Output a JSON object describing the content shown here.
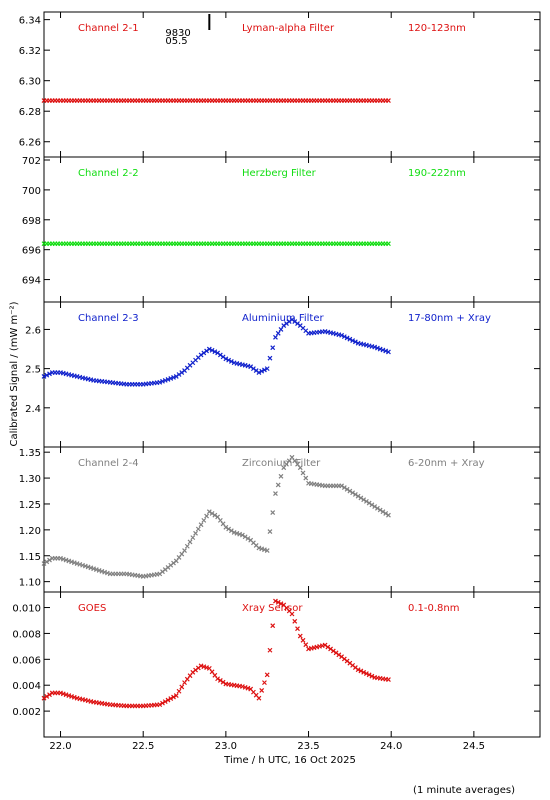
{
  "figure": {
    "ylabel": "Calibrated Signal / (mW m⁻²)",
    "xlabel": "Time / h UTC, 16 Oct 2025",
    "footnote": "(1 minute averages)",
    "marker_label_top": "9830",
    "marker_label_bottom": "05.5",
    "marker_x": 22.9
  },
  "chart_data": [
    {
      "type": "scatter",
      "panel_name": "channel-2-1",
      "channel_label": "Channel 2-1",
      "filter_label": "Lyman-alpha Filter",
      "band_label": "120-123nm",
      "color": "#dd1111",
      "xlim": [
        21.9,
        24.9
      ],
      "ylim": [
        6.25,
        6.345
      ],
      "yticks": [
        6.26,
        6.28,
        6.3,
        6.32,
        6.34
      ],
      "ytick_decimals": 2,
      "xticks": [
        22.0,
        22.5,
        23.0,
        23.5,
        24.0,
        24.5
      ],
      "x": [
        21.9,
        22.2,
        22.5,
        22.8,
        23.1,
        23.4,
        23.7,
        24.0
      ],
      "y": [
        6.287,
        6.287,
        6.287,
        6.287,
        6.287,
        6.287,
        6.287,
        6.287
      ]
    },
    {
      "type": "scatter",
      "panel_name": "channel-2-2",
      "channel_label": "Channel 2-2",
      "filter_label": "Herzberg Filter",
      "band_label": "190-222nm",
      "color": "#11dd11",
      "xlim": [
        21.9,
        24.9
      ],
      "ylim": [
        692.5,
        702.2
      ],
      "yticks": [
        694,
        696,
        698,
        700,
        702
      ],
      "ytick_decimals": 0,
      "xticks": [
        22.0,
        22.5,
        23.0,
        23.5,
        24.0,
        24.5
      ],
      "x": [
        21.9,
        22.2,
        22.5,
        22.8,
        23.1,
        23.4,
        23.7,
        24.0
      ],
      "y": [
        696.4,
        696.4,
        696.4,
        696.4,
        696.4,
        696.4,
        696.4,
        696.4
      ]
    },
    {
      "type": "scatter",
      "panel_name": "channel-2-3",
      "channel_label": "Channel 2-3",
      "filter_label": "Aluminium Filter",
      "band_label": "17-80nm + Xray",
      "color": "#1122cc",
      "xlim": [
        21.9,
        24.9
      ],
      "ylim": [
        2.3,
        2.67
      ],
      "yticks": [
        2.4,
        2.5,
        2.6
      ],
      "ytick_decimals": 1,
      "xticks": [
        22.0,
        22.5,
        23.0,
        23.5,
        24.0,
        24.5
      ],
      "x": [
        21.9,
        21.95,
        22.0,
        22.1,
        22.2,
        22.3,
        22.4,
        22.5,
        22.6,
        22.7,
        22.75,
        22.8,
        22.85,
        22.9,
        22.95,
        23.0,
        23.05,
        23.1,
        23.15,
        23.2,
        23.25,
        23.3,
        23.35,
        23.4,
        23.45,
        23.5,
        23.6,
        23.7,
        23.8,
        23.9,
        24.0
      ],
      "y": [
        2.48,
        2.49,
        2.49,
        2.48,
        2.47,
        2.465,
        2.46,
        2.46,
        2.465,
        2.48,
        2.495,
        2.515,
        2.535,
        2.55,
        2.54,
        2.525,
        2.515,
        2.51,
        2.505,
        2.49,
        2.5,
        2.58,
        2.61,
        2.625,
        2.61,
        2.59,
        2.595,
        2.585,
        2.565,
        2.555,
        2.54
      ]
    },
    {
      "type": "scatter",
      "panel_name": "channel-2-4",
      "channel_label": "Channel 2-4",
      "filter_label": "Zirconium Filter",
      "band_label": "6-20nm + Xray",
      "color": "#808080",
      "xlim": [
        21.9,
        24.9
      ],
      "ylim": [
        1.08,
        1.36
      ],
      "yticks": [
        1.1,
        1.15,
        1.2,
        1.25,
        1.3,
        1.35
      ],
      "ytick_decimals": 2,
      "xticks": [
        22.0,
        22.5,
        23.0,
        23.5,
        24.0,
        24.5
      ],
      "x": [
        21.9,
        21.95,
        22.0,
        22.1,
        22.2,
        22.3,
        22.4,
        22.5,
        22.6,
        22.7,
        22.75,
        22.8,
        22.85,
        22.9,
        22.95,
        23.0,
        23.05,
        23.1,
        23.15,
        23.2,
        23.25,
        23.3,
        23.35,
        23.4,
        23.45,
        23.5,
        23.6,
        23.7,
        23.8,
        23.9,
        24.0
      ],
      "y": [
        1.135,
        1.145,
        1.145,
        1.135,
        1.125,
        1.115,
        1.115,
        1.11,
        1.115,
        1.14,
        1.16,
        1.185,
        1.21,
        1.235,
        1.225,
        1.205,
        1.195,
        1.19,
        1.18,
        1.165,
        1.16,
        1.27,
        1.32,
        1.34,
        1.32,
        1.29,
        1.285,
        1.285,
        1.265,
        1.245,
        1.225
      ]
    },
    {
      "type": "scatter",
      "panel_name": "goes",
      "channel_label": "GOES",
      "filter_label": "Xray Sensor",
      "band_label": "0.1-0.8nm",
      "color": "#dd1111",
      "xlim": [
        21.9,
        24.9
      ],
      "ylim": [
        0,
        0.0112
      ],
      "yticks": [
        0.002,
        0.004,
        0.006,
        0.008,
        0.01
      ],
      "ytick_decimals": 3,
      "xticks": [
        22.0,
        22.5,
        23.0,
        23.5,
        24.0,
        24.5
      ],
      "x": [
        21.9,
        21.95,
        22.0,
        22.1,
        22.2,
        22.3,
        22.4,
        22.5,
        22.6,
        22.7,
        22.75,
        22.8,
        22.85,
        22.9,
        22.95,
        23.0,
        23.05,
        23.1,
        23.15,
        23.2,
        23.25,
        23.3,
        23.35,
        23.4,
        23.45,
        23.5,
        23.6,
        23.7,
        23.8,
        23.9,
        24.0
      ],
      "y": [
        0.003,
        0.0034,
        0.0034,
        0.003,
        0.0027,
        0.0025,
        0.0024,
        0.0024,
        0.0025,
        0.0032,
        0.0042,
        0.005,
        0.0055,
        0.0053,
        0.0045,
        0.0041,
        0.004,
        0.0039,
        0.0037,
        0.003,
        0.0048,
        0.0105,
        0.0102,
        0.0095,
        0.0078,
        0.0068,
        0.0071,
        0.0062,
        0.0052,
        0.0046,
        0.0044
      ]
    }
  ]
}
